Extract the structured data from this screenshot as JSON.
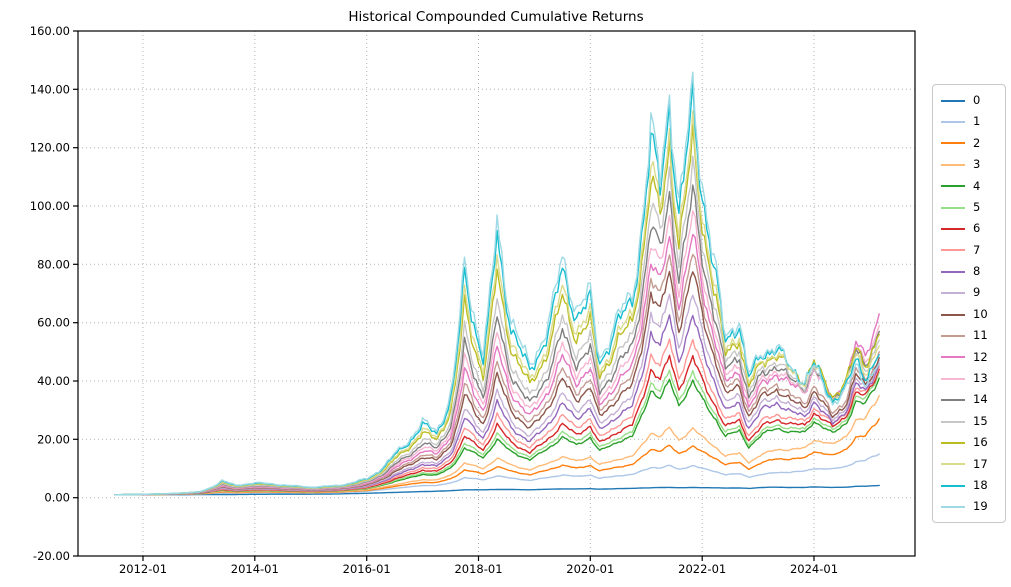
{
  "chart_data": {
    "type": "line",
    "title": "Historical Compounded Cumulative Returns",
    "xlabel": "",
    "ylabel": "",
    "ylim": [
      -20,
      160
    ],
    "grid": true,
    "grid_style": "dotted",
    "legend_position": "right-outside",
    "background_color": "#ffffff",
    "axis_color": "#000000",
    "grid_color": "#b0b0b0",
    "y_ticks": [
      {
        "value": 160,
        "label": "160.00"
      },
      {
        "value": 140,
        "label": "140.00"
      },
      {
        "value": 120,
        "label": "120.00"
      },
      {
        "value": 100,
        "label": "100.00"
      },
      {
        "value": 80,
        "label": "80.00"
      },
      {
        "value": 60,
        "label": "60.00"
      },
      {
        "value": 40,
        "label": "40.00"
      },
      {
        "value": 20,
        "label": "20.00"
      },
      {
        "value": 0,
        "label": "0.00"
      },
      {
        "value": -20,
        "label": "-20.00"
      }
    ],
    "x_ticks": [
      "2012-01",
      "2014-01",
      "2016-01",
      "2018-01",
      "2020-01",
      "2022-01",
      "2024-01"
    ],
    "x": [
      "2011-07",
      "2012-01",
      "2012-07",
      "2013-01",
      "2013-06",
      "2013-09",
      "2014-01",
      "2014-07",
      "2015-01",
      "2015-07",
      "2016-01",
      "2016-07",
      "2017-01",
      "2017-04",
      "2017-07",
      "2017-10",
      "2018-02",
      "2018-05",
      "2018-08",
      "2018-12",
      "2019-04",
      "2019-07",
      "2019-10",
      "2020-01",
      "2020-03",
      "2020-07",
      "2020-10",
      "2021-02",
      "2021-04",
      "2021-06",
      "2021-08",
      "2021-11",
      "2022-01",
      "2022-04",
      "2022-06",
      "2022-09",
      "2022-11",
      "2023-02",
      "2023-05",
      "2023-08",
      "2023-11",
      "2024-01",
      "2024-05",
      "2024-08",
      "2024-10",
      "2024-12",
      "2025-01",
      "2025-03"
    ],
    "series": [
      {
        "name": "0",
        "color": "#1f77b4",
        "values": [
          1.0,
          1.0,
          1.0,
          1.05,
          1.1,
          1.1,
          1.15,
          1.2,
          1.2,
          1.3,
          1.5,
          1.8,
          2.1,
          2.2,
          2.4,
          2.7,
          2.7,
          2.8,
          2.8,
          2.7,
          2.9,
          3.0,
          3.0,
          3.1,
          2.9,
          3.1,
          3.2,
          3.4,
          3.5,
          3.5,
          3.4,
          3.5,
          3.4,
          3.4,
          3.3,
          3.3,
          3.2,
          3.5,
          3.6,
          3.5,
          3.5,
          3.7,
          3.5,
          3.6,
          3.9,
          3.9,
          4.0,
          4.2
        ]
      },
      {
        "name": "1",
        "color": "#aec7e8",
        "values": [
          1.0,
          1.04,
          1.09,
          1.24,
          1.71,
          1.56,
          1.7,
          1.68,
          1.6,
          1.77,
          2.2,
          3.21,
          4.17,
          4.17,
          5.02,
          6.88,
          6.12,
          7.51,
          6.67,
          5.94,
          6.93,
          7.77,
          7.27,
          7.78,
          6.64,
          7.51,
          7.95,
          10.4,
          10.2,
          11.0,
          9.7,
          11.0,
          9.99,
          8.94,
          7.89,
          8.2,
          7.11,
          8.0,
          8.62,
          8.76,
          9.09,
          10.0,
          9.81,
          10.8,
          12.3,
          12.7,
          13.6,
          15.0
        ]
      },
      {
        "name": "2",
        "color": "#ff7f0e",
        "values": [
          1.0,
          1.05,
          1.12,
          1.31,
          1.96,
          1.73,
          1.92,
          1.87,
          1.74,
          1.94,
          2.47,
          3.9,
          5.26,
          5.18,
          6.47,
          9.5,
          8.19,
          10.7,
          9.1,
          7.86,
          9.6,
          11.1,
          10.1,
          11.1,
          9.16,
          10.6,
          11.3,
          16.7,
          16.0,
          17.8,
          15.1,
          17.7,
          15.7,
          13.4,
          11.4,
          12.0,
          9.94,
          12.1,
          13.4,
          13.2,
          13.6,
          15.9,
          14.4,
          16.8,
          20.7,
          21.0,
          23.2,
          27.0
        ]
      },
      {
        "name": "3",
        "color": "#ffbb78",
        "values": [
          1.0,
          1.06,
          1.14,
          1.36,
          2.17,
          1.88,
          2.1,
          2.02,
          1.86,
          2.08,
          2.7,
          4.48,
          6.2,
          6.03,
          7.72,
          11.9,
          9.99,
          13.6,
          11.2,
          9.52,
          11.9,
          14.0,
          12.6,
          14.0,
          11.3,
          13.2,
          14.2,
          22.3,
          21.0,
          23.9,
          19.7,
          23.8,
          20.8,
          17.2,
          14.3,
          15.2,
          12.2,
          14.9,
          16.6,
          16.4,
          17.0,
          19.9,
          18.2,
          21.4,
          26.5,
          26.9,
          30.0,
          35.0
        ]
      },
      {
        "name": "4",
        "color": "#2ca02c",
        "values": [
          1.0,
          1.07,
          1.18,
          1.44,
          2.53,
          2.12,
          2.41,
          2.27,
          2.06,
          2.31,
          3.08,
          5.57,
          8.02,
          7.68,
          10.2,
          17.0,
          13.8,
          20.0,
          15.8,
          13.0,
          17.0,
          20.7,
          18.1,
          20.7,
          16.0,
          19.3,
          21.0,
          37.0,
          34.1,
          40.1,
          31.7,
          39.9,
          33.8,
          26.7,
          21.1,
          22.9,
          17.5,
          21.8,
          23.9,
          22.4,
          22.4,
          26.3,
          22.0,
          25.9,
          32.8,
          32.0,
          35.1,
          41.0
        ]
      },
      {
        "name": "5",
        "color": "#98df8a",
        "values": [
          1.0,
          1.08,
          1.19,
          1.47,
          2.66,
          2.21,
          2.52,
          2.36,
          2.13,
          2.39,
          3.21,
          5.9,
          8.6,
          8.19,
          11.0,
          18.6,
          14.9,
          21.9,
          17.1,
          14.0,
          18.3,
          22.4,
          19.5,
          22.3,
          17.1,
          20.6,
          22.5,
          39.7,
          36.5,
          43.2,
          33.9,
          43.0,
          36.2,
          28.4,
          22.4,
          24.3,
          18.4,
          22.9,
          25.1,
          23.6,
          23.5,
          27.6,
          23.1,
          27.2,
          34.4,
          33.5,
          36.8,
          43.0
        ]
      },
      {
        "name": "6",
        "color": "#d62728",
        "values": [
          1.0,
          1.08,
          1.21,
          1.51,
          2.84,
          2.33,
          2.68,
          2.48,
          2.22,
          2.51,
          3.41,
          6.39,
          9.45,
          8.94,
          12.1,
          21.1,
          16.5,
          24.9,
          19.1,
          15.4,
          20.3,
          25.1,
          21.7,
          24.6,
          18.7,
          22.8,
          24.9,
          44.2,
          40.5,
          48.3,
          37.5,
          48.1,
          40.2,
          31.2,
          24.3,
          26.5,
          19.9,
          24.6,
          26.9,
          25.1,
          24.9,
          29.2,
          24.3,
          28.4,
          35.8,
          34.7,
          37.8,
          44.0
        ]
      },
      {
        "name": "7",
        "color": "#ff9896",
        "values": [
          1.0,
          1.09,
          1.22,
          1.55,
          3.04,
          2.46,
          2.84,
          2.62,
          2.32,
          2.63,
          3.62,
          6.92,
          10.4,
          9.76,
          13.4,
          24.0,
          18.3,
          28.2,
          21.4,
          17.1,
          22.6,
          28.1,
          24.1,
          27.3,
          20.6,
          25.2,
          27.6,
          49.3,
          44.9,
          54.0,
          41.5,
          53.7,
          44.6,
          34.2,
          26.5,
          28.9,
          21.5,
          26.5,
          28.7,
          26.8,
          26.4,
          30.8,
          25.4,
          29.6,
          37.1,
          35.8,
          38.9,
          45.0
        ]
      },
      {
        "name": "8",
        "color": "#9467bd",
        "values": [
          1.0,
          1.09,
          1.24,
          1.59,
          3.26,
          2.59,
          3.02,
          2.76,
          2.43,
          2.75,
          3.83,
          7.53,
          11.5,
          10.7,
          14.9,
          27.4,
          20.6,
          32.5,
          24.2,
          19.1,
          25.5,
          32.1,
          27.2,
          31.0,
          23.0,
          28.4,
          31.2,
          56.9,
          51.5,
          62.5,
          47.5,
          62.2,
          51.3,
          38.8,
          29.6,
          32.5,
          23.9,
          30.3,
          32.7,
          29.2,
          28.0,
          33.1,
          25.5,
          30.1,
          38.9,
          36.3,
          39.3,
          46.0
        ]
      },
      {
        "name": "9",
        "color": "#c5b0d5",
        "values": [
          1.0,
          1.1,
          1.25,
          1.62,
          3.43,
          2.7,
          3.16,
          2.87,
          2.51,
          2.85,
          4.01,
          8.02,
          12.4,
          11.5,
          16.2,
          30.4,
          22.5,
          36.1,
          26.6,
          20.8,
          27.9,
          35.5,
          29.9,
          34.0,
          25.0,
          31.0,
          34.2,
          63.5,
          57.1,
          69.9,
          52.6,
          69.5,
          56.9,
          42.6,
          32.2,
          35.5,
          25.8,
          32.5,
          35.0,
          31.1,
          29.6,
          34.9,
          26.7,
          31.3,
          40.3,
          37.4,
          40.3,
          47.0
        ]
      },
      {
        "name": "10",
        "color": "#8c564b",
        "values": [
          1.0,
          1.11,
          1.27,
          1.67,
          3.73,
          2.89,
          3.41,
          3.06,
          2.65,
          3.02,
          4.31,
          8.83,
          13.9,
          12.8,
          18.2,
          35.3,
          25.4,
          41.9,
          30.3,
          23.4,
          31.4,
          40.4,
          33.7,
          38.1,
          27.7,
          34.6,
          38.2,
          70.7,
          63.3,
          78.1,
          58.2,
          77.7,
          63.2,
          46.8,
          35.0,
          38.8,
          27.8,
          34.9,
          37.3,
          33.0,
          31.3,
          36.7,
          27.9,
          32.6,
          41.8,
          38.6,
          41.4,
          48.0
        ]
      },
      {
        "name": "11",
        "color": "#c49c94",
        "values": [
          1.0,
          1.11,
          1.29,
          1.7,
          3.93,
          3.0,
          3.57,
          3.18,
          2.74,
          3.13,
          4.51,
          9.35,
          14.9,
          13.6,
          19.6,
          38.7,
          27.4,
          45.9,
          32.8,
          25.2,
          33.8,
          43.8,
          36.3,
          40.9,
          29.6,
          37.1,
          41.1,
          76.0,
          67.9,
          84.1,
          62.3,
          83.6,
          67.7,
          49.8,
          37.1,
          41.2,
          29.3,
          36.7,
          39.3,
          34.7,
          32.9,
          38.4,
          29.2,
          34.1,
          43.7,
          40.3,
          43.1,
          50.0
        ]
      },
      {
        "name": "12",
        "color": "#e377c2",
        "values": [
          1.0,
          1.12,
          1.3,
          1.75,
          4.2,
          3.17,
          3.79,
          3.35,
          2.86,
          3.28,
          4.78,
          10.1,
          16.2,
          14.8,
          21.4,
          43.4,
          30.1,
          51.4,
          36.3,
          27.6,
          36.9,
          48.2,
          39.7,
          44.3,
          31.8,
          40.1,
          44.5,
          81.7,
          72.7,
          90.4,
          66.6,
          89.9,
          72.6,
          53.0,
          39.3,
          43.6,
          30.9,
          39.3,
          42.7,
          38.4,
          36.9,
          43.9,
          34.0,
          40.3,
          52.5,
          49.2,
          53.5,
          63.0
        ]
      },
      {
        "name": "13",
        "color": "#f7b6d2",
        "values": [
          1.0,
          1.12,
          1.32,
          1.78,
          4.42,
          3.3,
          3.96,
          3.48,
          2.96,
          3.4,
          4.99,
          10.7,
          17.4,
          15.8,
          23.0,
          47.6,
          32.5,
          56.3,
          39.3,
          29.7,
          39.7,
          52.2,
          42.8,
          47.6,
          33.9,
          42.9,
          47.8,
          87.9,
          77.8,
          97.4,
          71.3,
          96.8,
          77.8,
          56.4,
          41.5,
          46.3,
          32.5,
          40.9,
          44.0,
          39.1,
          37.3,
          43.9,
          33.5,
          39.4,
          50.7,
          47.1,
          50.6,
          59.0
        ]
      },
      {
        "name": "14",
        "color": "#7f7f7f",
        "values": [
          1.0,
          1.13,
          1.33,
          1.81,
          4.65,
          3.44,
          4.15,
          3.62,
          3.06,
          3.52,
          5.21,
          11.3,
          18.6,
          16.9,
          24.8,
          52.2,
          35.1,
          61.7,
          42.6,
          31.9,
          42.8,
          56.7,
          46.2,
          51.1,
          36.2,
          46.0,
          51.3,
          94.5,
          83.4,
          105,
          76.3,
          104,
          83.4,
          60.0,
          43.9,
          49.1,
          34.2,
          42.7,
          45.6,
          40.2,
          38.1,
          44.4,
          33.7,
          39.2,
          50.1,
          46.2,
          49.2,
          57.0
        ]
      },
      {
        "name": "15",
        "color": "#c7c7c7",
        "values": [
          1.0,
          1.13,
          1.34,
          1.85,
          4.89,
          3.58,
          4.34,
          3.77,
          3.16,
          3.65,
          5.45,
          12.0,
          20.0,
          18.0,
          26.6,
          57.2,
          37.8,
          67.7,
          46.1,
          34.4,
          46.1,
          61.4,
          49.8,
          54.9,
          38.6,
          49.3,
          55.0,
          101,
          89.4,
          113,
          81.6,
          112,
          89.4,
          63.9,
          46.5,
          52.0,
          36.0,
          44.6,
          47.2,
          41.2,
          38.6,
          44.6,
          33.4,
          38.6,
          48.9,
          44.6,
          47.2,
          54.0
        ]
      },
      {
        "name": "16",
        "color": "#bcbd22",
        "values": [
          1.0,
          1.14,
          1.37,
          1.91,
          5.32,
          3.82,
          4.68,
          4.02,
          3.34,
          3.87,
          5.86,
          13.1,
          22.2,
          19.9,
          29.8,
          65.8,
          42.3,
          77.4,
          51.9,
          38.3,
          51.0,
          68.6,
          55.2,
          60.2,
          41.8,
          53.8,
          60.2,
          109,
          95.8,
          122,
          87.4,
          121,
          95.9,
          67.9,
          49.1,
          55.1,
          37.9,
          46.9,
          49.4,
          43.1,
          40.4,
          46.6,
          34.9,
          40.2,
          50.9,
          46.3,
          48.9,
          56.0
        ]
      },
      {
        "name": "17",
        "color": "#dbdb8d",
        "values": [
          1.0,
          1.14,
          1.38,
          1.94,
          5.51,
          3.93,
          4.82,
          4.13,
          3.41,
          3.96,
          6.04,
          13.6,
          23.2,
          20.7,
          31.1,
          69.6,
          44.3,
          81.8,
          54.6,
          40.0,
          53.4,
          72.0,
          57.7,
          62.6,
          43.3,
          55.9,
          62.7,
          113,
          99.1,
          126,
          90.4,
          125,
          99.2,
          70.1,
          50.5,
          56.8,
          38.9,
          47.7,
          49.9,
          43.1,
          40.0,
          45.8,
          33.9,
          38.8,
          48.5,
          43.8,
          45.8,
          52.0
        ]
      },
      {
        "name": "18",
        "color": "#17becf",
        "values": [
          1.0,
          1.15,
          1.39,
          1.97,
          5.8,
          4.09,
          5.05,
          4.29,
          3.53,
          4.11,
          6.31,
          14.5,
          24.9,
          22.1,
          33.4,
          76.3,
          47.8,
          89.7,
          59.1,
          43.0,
          57.4,
          78.1,
          62.2,
          67.3,
          46.3,
          59.9,
          67.3,
          122,
          106,
          136,
          96.6,
          135,
          106,
          74.6,
          53.5,
          60.3,
          40.9,
          49.6,
          51.4,
          44.0,
          40.4,
          45.8,
          33.6,
          38.0,
          47.1,
          42.1,
          43.6,
          49.0
        ]
      },
      {
        "name": "19",
        "color": "#9edae5",
        "values": [
          1.0,
          1.15,
          1.4,
          2.0,
          6.0,
          4.2,
          5.2,
          4.4,
          3.6,
          4.2,
          6.5,
          15.0,
          26.0,
          23.0,
          35.0,
          81.0,
          50.0,
          95.0,
          62.0,
          45.0,
          60.0,
          82.0,
          65.0,
          70.0,
          48.0,
          62.0,
          70.0,
          126,
          110,
          141,
          100,
          140,
          110,
          77.0,
          55.0,
          62.0,
          42.0,
          50.6,
          52.0,
          44.1,
          40.2,
          45.2,
          32.8,
          36.8,
          45.3,
          40.2,
          41.3,
          46.0
        ]
      }
    ]
  }
}
